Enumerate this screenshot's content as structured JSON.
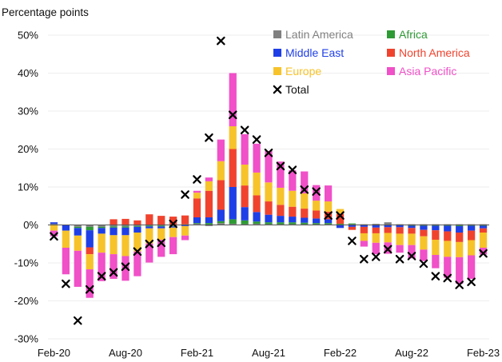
{
  "chart_data": {
    "type": "bar",
    "stacked": true,
    "unit_label": "Percentage points",
    "title": "",
    "xlabel": "",
    "ylabel": "",
    "ylim": [
      -30,
      50
    ],
    "yticks": [
      -30,
      -20,
      -10,
      0,
      10,
      20,
      30,
      40,
      50
    ],
    "ytick_labels": [
      "-30%",
      "-20%",
      "-10%",
      "0%",
      "10%",
      "20%",
      "30%",
      "40%",
      "50%"
    ],
    "categories": [
      "Feb-20",
      "Mar-20",
      "Apr-20",
      "May-20",
      "Jun-20",
      "Jul-20",
      "Aug-20",
      "Sep-20",
      "Oct-20",
      "Nov-20",
      "Dec-20",
      "Jan-21",
      "Feb-21",
      "Mar-21",
      "Apr-21",
      "May-21",
      "Jun-21",
      "Jul-21",
      "Aug-21",
      "Sep-21",
      "Oct-21",
      "Nov-21",
      "Dec-21",
      "Jan-22",
      "Feb-22",
      "Mar-22",
      "Apr-22",
      "May-22",
      "Jun-22",
      "Jul-22",
      "Aug-22",
      "Sep-22",
      "Oct-22",
      "Nov-22",
      "Dec-22",
      "Jan-23",
      "Feb-23"
    ],
    "xtick_labels": [
      "Feb-20",
      "Aug-20",
      "Feb-21",
      "Aug-21",
      "Feb-22",
      "Aug-22",
      "Feb-23"
    ],
    "legend_position": "top-right",
    "series": [
      {
        "name": "Latin America",
        "color": "#808080",
        "values": [
          0.3,
          0,
          -0.5,
          -0.5,
          -0.5,
          -0.4,
          -0.4,
          -0.3,
          -0.2,
          -0.2,
          -0.3,
          0.2,
          0.3,
          -0.3,
          0.5,
          0.3,
          0.2,
          0.3,
          0.2,
          0.2,
          0.2,
          0.2,
          0.2,
          0.2,
          0,
          0.2,
          0.2,
          0.3,
          0.7,
          0.2,
          0.2,
          0.2,
          0.2,
          0.2,
          0.2,
          0.2,
          0.2
        ]
      },
      {
        "name": "Africa",
        "color": "#2e9a34",
        "values": [
          0,
          0,
          -0.3,
          -0.9,
          -0.3,
          -0.3,
          -0.3,
          -0.2,
          -0.2,
          -0.2,
          -0.1,
          -0.1,
          0.2,
          0.5,
          0.5,
          1.2,
          1.0,
          0.6,
          0.5,
          0.5,
          0.5,
          0.4,
          0.3,
          0.3,
          0.3,
          0.2,
          0,
          0,
          0,
          0,
          -0.2,
          -0.2,
          -0.2,
          -0.2,
          -0.3,
          -0.2,
          -0.2
        ]
      },
      {
        "name": "Middle East",
        "color": "#1f3fe6",
        "values": [
          0.4,
          -1.5,
          -2.0,
          -4.5,
          -1.5,
          -2.0,
          -2.0,
          -1.5,
          -0.5,
          -0.5,
          -0.3,
          -0.2,
          1.5,
          1.5,
          3.0,
          8.5,
          3.5,
          2.5,
          2.0,
          1.7,
          1.5,
          1.3,
          1.2,
          1.0,
          -0.8,
          -0.5,
          -0.5,
          -0.7,
          -0.6,
          -0.6,
          -0.6,
          -1.1,
          -1.2,
          -1.5,
          -1.7,
          -1.3,
          -0.7
        ]
      },
      {
        "name": "North America",
        "color": "#f0432e",
        "values": [
          0,
          0,
          0,
          -1.8,
          0,
          1.5,
          1.6,
          1.2,
          2.8,
          2.4,
          2.2,
          2.3,
          5.0,
          7.0,
          7.8,
          10.0,
          5.7,
          4.4,
          3.5,
          2.9,
          2.6,
          2.4,
          2.1,
          2.0,
          2.6,
          -0.8,
          -1.7,
          -1.5,
          -1.5,
          -1.7,
          -1.5,
          -1.7,
          -2.5,
          -2.5,
          -2.5,
          -2.5,
          -1.1
        ]
      },
      {
        "name": "Europe",
        "color": "#f7c32a",
        "values": [
          -1.5,
          -4.5,
          -4.0,
          -4.0,
          -5.0,
          -5.0,
          -5.5,
          -5.0,
          -4.0,
          -3.0,
          -2.5,
          -2.5,
          1.5,
          2.5,
          5.0,
          6.0,
          5.5,
          6.0,
          5.0,
          4.5,
          4.2,
          4.0,
          2.6,
          2.7,
          1.3,
          0,
          -2.0,
          -2.5,
          -2.5,
          -3.0,
          -3.0,
          -3.5,
          -4.0,
          -4.2,
          -4.0,
          -4.0,
          -4.0
        ]
      },
      {
        "name": "Asia Pacific",
        "color": "#f050c8",
        "values": [
          -1.5,
          -7.0,
          -9.5,
          -7.5,
          -7.5,
          -6.5,
          -6.5,
          -6.5,
          -5.0,
          -4.5,
          -4.5,
          -1.2,
          0.5,
          1.0,
          5.7,
          14.0,
          8.0,
          7.6,
          8.3,
          6.9,
          5.4,
          5.8,
          4.1,
          4.2,
          0,
          0,
          -1.5,
          -3.0,
          -3.0,
          -2.0,
          -3.5,
          -3.0,
          -3.5,
          -5.5,
          -7.0,
          -6.2,
          -1.8
        ]
      }
    ],
    "total": {
      "name": "Total",
      "marker": "x",
      "color": "#000000",
      "values": [
        -3.0,
        -15.5,
        -25.2,
        -17.0,
        -13.5,
        -12.5,
        -11.0,
        -7.0,
        -5.0,
        -4.7,
        0.3,
        8.0,
        12.0,
        23.0,
        48.5,
        29.0,
        25.0,
        22.5,
        19.0,
        15.5,
        14.5,
        9.3,
        8.8,
        2.5,
        2.5,
        -4.2,
        -9.0,
        -8.4,
        -6.4,
        -9.0,
        -8.2,
        -10.2,
        -13.5,
        -14.0,
        -15.8,
        -15.0,
        -7.5
      ]
    }
  }
}
